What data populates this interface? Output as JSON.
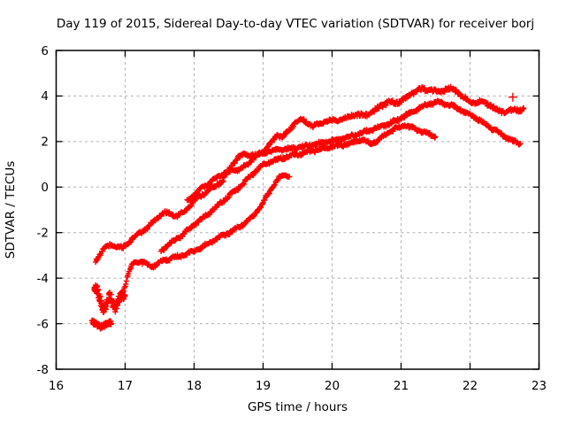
{
  "chart_data": {
    "type": "scatter",
    "title": "Day 119 of 2015, Sidereal Day-to-day VTEC variation (SDTVAR) for receiver borj",
    "xlabel": "GPS time / hours",
    "ylabel": "SDTVAR / TECUs",
    "xlim": [
      16,
      23
    ],
    "ylim": [
      -8,
      6
    ],
    "xticks": [
      "16",
      "17",
      "18",
      "19",
      "20",
      "21",
      "22",
      "23"
    ],
    "yticks": [
      "-8",
      "-6",
      "-4",
      "-2",
      "0",
      "2",
      "4",
      "6"
    ],
    "grid": true,
    "grid_style": "dotted",
    "grid_color": "#b0b0b0",
    "marker": "plus",
    "marker_color": "#ff0000",
    "legend": "none",
    "series": [
      {
        "name": "arc-long-top",
        "step": 0.01,
        "jitter": 0.055,
        "thick_from": 20.25,
        "points": [
          [
            16.57,
            -3.25
          ],
          [
            16.62,
            -3.02
          ],
          [
            16.7,
            -2.68
          ],
          [
            16.78,
            -2.55
          ],
          [
            16.88,
            -2.6
          ],
          [
            16.97,
            -2.68
          ],
          [
            17.05,
            -2.42
          ],
          [
            17.15,
            -2.15
          ],
          [
            17.25,
            -1.95
          ],
          [
            17.35,
            -1.7
          ],
          [
            17.45,
            -1.4
          ],
          [
            17.55,
            -1.12
          ],
          [
            17.65,
            -1.15
          ],
          [
            17.73,
            -1.28
          ],
          [
            17.82,
            -1.18
          ],
          [
            17.9,
            -0.95
          ],
          [
            18.0,
            -0.6
          ],
          [
            18.1,
            -0.38
          ],
          [
            18.2,
            -0.15
          ],
          [
            18.3,
            0.02
          ],
          [
            18.42,
            0.3
          ],
          [
            18.52,
            0.85
          ],
          [
            18.62,
            1.25
          ],
          [
            18.72,
            1.45
          ],
          [
            18.82,
            1.42
          ],
          [
            18.9,
            1.38
          ],
          [
            19.0,
            1.55
          ],
          [
            19.1,
            1.85
          ],
          [
            19.2,
            2.28
          ],
          [
            19.28,
            2.2
          ],
          [
            19.38,
            2.5
          ],
          [
            19.48,
            2.9
          ],
          [
            19.56,
            2.95
          ],
          [
            19.64,
            2.85
          ],
          [
            19.72,
            2.68
          ],
          [
            19.8,
            2.78
          ],
          [
            19.9,
            2.88
          ],
          [
            20.0,
            2.92
          ],
          [
            20.1,
            2.98
          ],
          [
            20.2,
            3.02
          ],
          [
            20.3,
            3.08
          ],
          [
            20.4,
            3.15
          ],
          [
            20.5,
            3.28
          ],
          [
            20.6,
            3.4
          ],
          [
            20.7,
            3.5
          ],
          [
            20.8,
            3.6
          ],
          [
            20.9,
            3.72
          ],
          [
            21.0,
            3.88
          ],
          [
            21.1,
            4.0
          ],
          [
            21.2,
            4.12
          ],
          [
            21.3,
            4.22
          ],
          [
            21.4,
            4.3
          ],
          [
            21.5,
            4.32
          ],
          [
            21.6,
            4.28
          ],
          [
            21.7,
            4.22
          ],
          [
            21.8,
            4.15
          ],
          [
            21.9,
            4.0
          ],
          [
            22.0,
            3.88
          ],
          [
            22.1,
            3.75
          ],
          [
            22.2,
            3.62
          ],
          [
            22.3,
            3.5
          ],
          [
            22.4,
            3.45
          ],
          [
            22.5,
            3.38
          ],
          [
            22.6,
            3.33
          ],
          [
            22.7,
            3.3
          ],
          [
            22.78,
            3.32
          ]
        ]
      },
      {
        "name": "arc-second-band",
        "step": 0.01,
        "jitter": 0.055,
        "points": [
          [
            17.9,
            -0.62
          ],
          [
            18.0,
            -0.35
          ],
          [
            18.1,
            -0.08
          ],
          [
            18.2,
            0.15
          ],
          [
            18.32,
            0.4
          ],
          [
            18.45,
            0.62
          ],
          [
            18.55,
            0.7
          ],
          [
            18.65,
            0.78
          ],
          [
            18.75,
            0.92
          ],
          [
            18.85,
            1.25
          ],
          [
            18.95,
            1.45
          ],
          [
            19.05,
            1.55
          ],
          [
            19.15,
            1.6
          ],
          [
            19.3,
            1.65
          ],
          [
            19.45,
            1.72
          ],
          [
            19.6,
            1.78
          ],
          [
            19.75,
            1.88
          ],
          [
            19.9,
            1.98
          ],
          [
            20.05,
            2.05
          ],
          [
            20.2,
            2.18
          ],
          [
            20.35,
            2.3
          ],
          [
            20.5,
            2.45
          ],
          [
            20.65,
            2.6
          ],
          [
            20.8,
            2.75
          ],
          [
            20.95,
            2.95
          ],
          [
            21.1,
            3.2
          ],
          [
            21.25,
            3.45
          ],
          [
            21.4,
            3.65
          ],
          [
            21.55,
            3.72
          ],
          [
            21.7,
            3.62
          ],
          [
            21.85,
            3.42
          ],
          [
            22.0,
            3.18
          ],
          [
            22.15,
            2.92
          ],
          [
            22.3,
            2.62
          ],
          [
            22.45,
            2.32
          ],
          [
            22.6,
            2.05
          ],
          [
            22.73,
            1.9
          ]
        ]
      },
      {
        "name": "arc-short-mid",
        "step": 0.01,
        "jitter": 0.055,
        "points": [
          [
            17.52,
            -2.8
          ],
          [
            17.62,
            -2.55
          ],
          [
            17.72,
            -2.35
          ],
          [
            17.82,
            -2.12
          ],
          [
            17.92,
            -1.85
          ],
          [
            18.02,
            -1.6
          ],
          [
            18.12,
            -1.38
          ],
          [
            18.22,
            -1.12
          ],
          [
            18.32,
            -0.88
          ],
          [
            18.42,
            -0.6
          ],
          [
            18.52,
            -0.35
          ],
          [
            18.62,
            -0.1
          ],
          [
            18.72,
            0.18
          ],
          [
            18.82,
            0.48
          ],
          [
            18.92,
            0.8
          ],
          [
            19.02,
            1.0
          ],
          [
            19.12,
            1.12
          ],
          [
            19.25,
            1.25
          ],
          [
            19.4,
            1.38
          ],
          [
            19.55,
            1.48
          ],
          [
            19.7,
            1.58
          ],
          [
            19.85,
            1.68
          ],
          [
            20.0,
            1.78
          ],
          [
            20.15,
            1.85
          ],
          [
            20.3,
            1.95
          ],
          [
            20.45,
            2.08
          ],
          [
            20.55,
            1.92
          ],
          [
            20.65,
            2.02
          ],
          [
            20.75,
            2.25
          ],
          [
            20.85,
            2.45
          ],
          [
            20.95,
            2.6
          ],
          [
            21.05,
            2.7
          ],
          [
            21.15,
            2.6
          ],
          [
            21.25,
            2.5
          ],
          [
            21.35,
            2.38
          ],
          [
            21.45,
            2.28
          ],
          [
            21.5,
            2.22
          ]
        ]
      },
      {
        "name": "arc-long-bottom",
        "step": 0.01,
        "jitter": 0.055,
        "points": [
          [
            16.92,
            -4.85
          ],
          [
            16.98,
            -4.5
          ],
          [
            17.02,
            -4.1
          ],
          [
            17.06,
            -3.7
          ],
          [
            17.1,
            -3.4
          ],
          [
            17.18,
            -3.25
          ],
          [
            17.28,
            -3.35
          ],
          [
            17.38,
            -3.5
          ],
          [
            17.48,
            -3.35
          ],
          [
            17.58,
            -3.2
          ],
          [
            17.7,
            -3.1
          ],
          [
            17.82,
            -3.0
          ],
          [
            17.95,
            -2.88
          ],
          [
            18.08,
            -2.7
          ],
          [
            18.2,
            -2.5
          ],
          [
            18.32,
            -2.28
          ],
          [
            18.45,
            -2.08
          ],
          [
            18.58,
            -1.9
          ],
          [
            18.7,
            -1.65
          ],
          [
            18.82,
            -1.38
          ],
          [
            18.92,
            -1.05
          ],
          [
            19.0,
            -0.68
          ],
          [
            19.08,
            -0.28
          ],
          [
            19.16,
            0.15
          ],
          [
            19.24,
            0.42
          ],
          [
            19.32,
            0.52
          ],
          [
            19.38,
            0.48
          ]
        ]
      },
      {
        "name": "start-cluster",
        "step": 0.004,
        "jitter": 0.2,
        "points": [
          [
            16.55,
            -4.45
          ],
          [
            16.59,
            -4.42
          ],
          [
            16.62,
            -4.75
          ],
          [
            16.65,
            -5.1
          ],
          [
            16.68,
            -5.45
          ],
          [
            16.71,
            -5.3
          ],
          [
            16.74,
            -5.0
          ],
          [
            16.77,
            -4.72
          ],
          [
            16.8,
            -4.9
          ],
          [
            16.83,
            -5.15
          ],
          [
            16.86,
            -5.3
          ],
          [
            16.89,
            -5.1
          ],
          [
            16.92,
            -4.88
          ],
          [
            16.96,
            -4.72
          ],
          [
            17.0,
            -4.8
          ]
        ]
      },
      {
        "name": "low-blob",
        "step": 0.004,
        "jitter": 0.09,
        "points": [
          [
            16.52,
            -5.95
          ],
          [
            16.56,
            -6.0
          ],
          [
            16.6,
            -6.05
          ],
          [
            16.64,
            -6.1
          ],
          [
            16.68,
            -6.1
          ],
          [
            16.72,
            -6.05
          ],
          [
            16.76,
            -5.98
          ],
          [
            16.8,
            -5.95
          ]
        ]
      },
      {
        "name": "isolated-point",
        "step": 0.01,
        "jitter": 0,
        "points": [
          [
            22.62,
            3.95
          ]
        ]
      }
    ]
  }
}
